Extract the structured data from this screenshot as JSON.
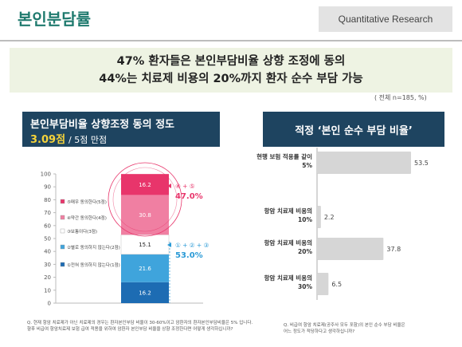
{
  "header": {
    "title": "본인분담률",
    "tag": "Quantitative Research"
  },
  "headline": {
    "line1": "47% 환자들은 본인부담비율 상향 조정에 동의",
    "line2": "44%는 치료제 비용의 20%까지 환자 순수 부담 가능"
  },
  "base_note": "( 전체 n=185, %)",
  "left_panel": {
    "title": "본인부담비율 상향조정 동의 정도",
    "score": "3.09점",
    "scale": "/ 5점 만점"
  },
  "right_panel": {
    "title": "적정 ‘본인 순수 부담 비율’"
  },
  "annotations": {
    "top_label": "④ + ⑤",
    "top_value": "47.0%",
    "bottom_label": "① + ② + ③",
    "bottom_value": "53.0%"
  },
  "colors": {
    "c5": "#e8356b",
    "c4": "#f07fa2",
    "c3": "#ffffff",
    "c2": "#3fa4dc",
    "c1": "#1d6cb3",
    "hbar": "#d6d6d6",
    "accent_red": "#e8356b",
    "accent_blue": "#2a9ad6"
  },
  "chart_data": [
    {
      "type": "bar",
      "stacked": true,
      "ylim": [
        0,
        100
      ],
      "yticks": [
        0,
        10,
        20,
        30,
        40,
        50,
        60,
        70,
        80,
        90,
        100
      ],
      "series": [
        {
          "name": "①전혀 동의하지 않는다(1점)",
          "values": [
            16.2
          ]
        },
        {
          "name": "②별로 동의하지 않는다(2점)",
          "values": [
            21.6
          ]
        },
        {
          "name": "③보통이다(3점)",
          "values": [
            15.1
          ]
        },
        {
          "name": "④약간 동의한다(4점)",
          "values": [
            30.8
          ]
        },
        {
          "name": "⑤매우 동의한다(5점)",
          "values": [
            16.2
          ]
        }
      ],
      "value_labels": [
        "16.2",
        "21.6",
        "15.1",
        "30.8",
        "16.2"
      ]
    },
    {
      "type": "bar",
      "orientation": "horizontal",
      "categories": [
        "현행 보험 적용률 같이 5%",
        "항암 치료제 비용의 10%",
        "항암 치료제 비용의 20%",
        "항암 치료제 비용의 30%"
      ],
      "category_lines": [
        [
          "현행 보험 적용률 같이",
          "5%"
        ],
        [
          "항암 치료제 비용의",
          "10%"
        ],
        [
          "항암 치료제 비용의",
          "20%"
        ],
        [
          "항암 치료제 비용의",
          "30%"
        ]
      ],
      "values": [
        53.5,
        2.2,
        37.8,
        6.5
      ],
      "value_labels": [
        "53.5",
        "2.2",
        "37.8",
        "6.5"
      ]
    }
  ],
  "footnotes": {
    "left_1": "Q. 현재 항암 치료제가 아닌 치료제의 경우는 환자본인부담 비율이 30-60%이고 암환자의 환자본인부담비율은 5% 입니다.",
    "left_2": "향후 비급여 항암치료제 보험 급여 적용을 위하여 암환자 본인부담 비율을 상향 조정한다면 어떻게 생각하십니까?",
    "right_1": "Q. 비급여 항암 치료제(공주사 모두 포함)의 본인 순수 부담 비율은",
    "right_2": "어느 정도가 적당하다고 생각하십니까?"
  }
}
